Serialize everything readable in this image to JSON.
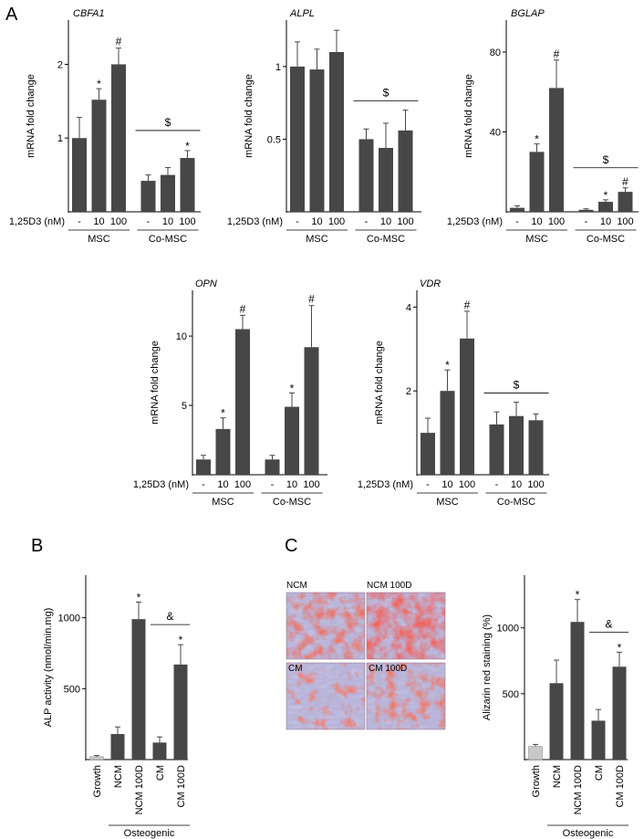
{
  "panel_labels": {
    "a": "A",
    "b": "B",
    "c": "C"
  },
  "micrograph_labels": [
    "NCM",
    "NCM 100D",
    "CM",
    "CM 100D"
  ],
  "colors": {
    "bar": "#474747",
    "growth_bar": "#c8c8c8",
    "axis": "#000000"
  },
  "chart_data": [
    {
      "id": "cbfa1",
      "type": "bar",
      "title": "CBFA1",
      "ylabel": "mRNA fold change",
      "ylim": [
        0,
        2.6
      ],
      "yticks": [
        1,
        2
      ],
      "dose_label": "1,25D3 (nM)",
      "categories": [
        "-",
        "10",
        "100",
        "-",
        "10",
        "100"
      ],
      "values": [
        1.0,
        1.52,
        2.0,
        0.42,
        0.5,
        0.73
      ],
      "errors": [
        0.28,
        0.15,
        0.22,
        0.08,
        0.1,
        0.1
      ],
      "markers": [
        "",
        "*",
        "#",
        "",
        "",
        "*"
      ],
      "groups": [
        "MSC",
        "Co-MSC"
      ],
      "bracket": "$"
    },
    {
      "id": "alpl",
      "type": "bar",
      "title": "ALPL",
      "ylabel": "mRNA fold change",
      "ylim": [
        0,
        1.32
      ],
      "yticks": [
        0.5,
        1
      ],
      "dose_label": "1,25D3 (nM)",
      "categories": [
        "-",
        "10",
        "100",
        "-",
        "10",
        "100"
      ],
      "values": [
        1.0,
        0.98,
        1.1,
        0.5,
        0.44,
        0.56
      ],
      "errors": [
        0.17,
        0.14,
        0.15,
        0.07,
        0.17,
        0.14
      ],
      "markers": [
        "",
        "",
        "",
        "",
        "",
        ""
      ],
      "groups": [
        "MSC",
        "Co-MSC"
      ],
      "bracket": "$"
    },
    {
      "id": "bglap",
      "type": "bar",
      "title": "BGLAP",
      "ylabel": "mRNA fold change",
      "ylim": [
        0,
        96
      ],
      "yticks": [
        40,
        80
      ],
      "dose_label": "1,25D3 (nM)",
      "categories": [
        "-",
        "10",
        "100",
        "-",
        "10",
        "100"
      ],
      "values": [
        2,
        30,
        62,
        1,
        5,
        10
      ],
      "errors": [
        1,
        4,
        14,
        0.5,
        1,
        2
      ],
      "markers": [
        "",
        "*",
        "#",
        "",
        "*",
        "#"
      ],
      "groups": [
        "MSC",
        "Co-MSC"
      ],
      "bracket": "$"
    },
    {
      "id": "opn",
      "type": "bar",
      "title": "OPN",
      "ylabel": "mRNA fold change",
      "ylim": [
        0,
        13.3
      ],
      "yticks": [
        5,
        10
      ],
      "dose_label": "1,25D3 (nM)",
      "categories": [
        "-",
        "10",
        "100",
        "-",
        "10",
        "100"
      ],
      "values": [
        1.1,
        3.3,
        10.5,
        1.1,
        4.9,
        9.2
      ],
      "errors": [
        0.3,
        0.8,
        1.0,
        0.3,
        1.0,
        3.0
      ],
      "markers": [
        "",
        "*",
        "#",
        "",
        "*",
        "#"
      ],
      "groups": [
        "MSC",
        "Co-MSC"
      ],
      "bracket": ""
    },
    {
      "id": "vdr",
      "type": "bar",
      "title": "VDR",
      "ylabel": "mRNA fold change",
      "ylim": [
        0,
        4.4
      ],
      "yticks": [
        2,
        4
      ],
      "dose_label": "1,25D3 (nM)",
      "categories": [
        "-",
        "10",
        "100",
        "-",
        "10",
        "100"
      ],
      "values": [
        1.0,
        2.0,
        3.25,
        1.2,
        1.4,
        1.3
      ],
      "errors": [
        0.35,
        0.5,
        0.65,
        0.3,
        0.33,
        0.15
      ],
      "markers": [
        "",
        "*",
        "#",
        "",
        "",
        ""
      ],
      "groups": [
        "MSC",
        "Co-MSC"
      ],
      "bracket": "$"
    },
    {
      "id": "alp_activity",
      "type": "bar",
      "title": "",
      "ylabel": "ALP activity (nmol/min.mg)",
      "ylim": [
        0,
        1300
      ],
      "yticks": [
        500,
        1000
      ],
      "categories": [
        "Growth",
        "NCM",
        "NCM 100D",
        "CM",
        "CM 100D"
      ],
      "values": [
        20,
        180,
        990,
        120,
        670
      ],
      "errors": [
        8,
        50,
        120,
        40,
        140
      ],
      "markers": [
        "",
        "",
        "*",
        "",
        "*"
      ],
      "group_label": "Osteogenic",
      "bracket": "&"
    },
    {
      "id": "alizarin",
      "type": "bar",
      "title": "",
      "ylabel": "Alizarin red staining (%)",
      "ylim": [
        0,
        1400
      ],
      "yticks": [
        500,
        1000
      ],
      "categories": [
        "Growth",
        "NCM",
        "NCM 100D",
        "CM",
        "CM 100D"
      ],
      "values": [
        100,
        580,
        1045,
        295,
        705
      ],
      "errors": [
        15,
        175,
        170,
        85,
        110
      ],
      "markers": [
        "",
        "",
        "*",
        "",
        "*"
      ],
      "group_label": "Osteogenic",
      "bracket": "&"
    }
  ]
}
